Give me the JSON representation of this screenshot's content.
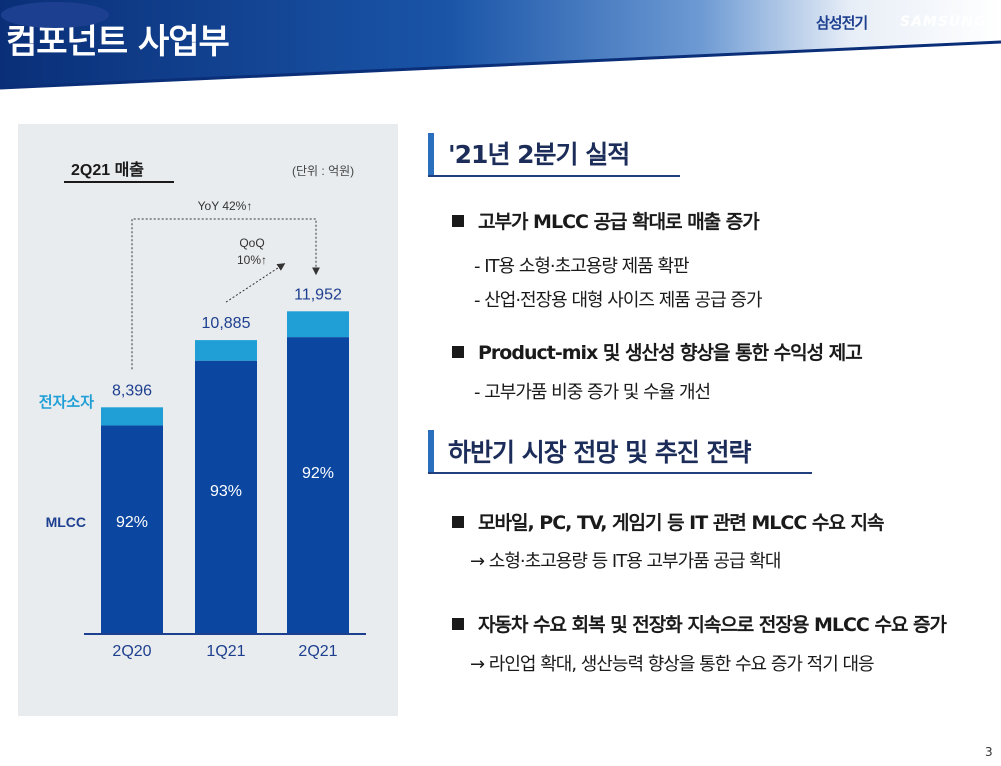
{
  "header": {
    "title": "컴포넌트 사업부",
    "brand_kr": "삼성전기",
    "brand_logo": "SAMSUNG"
  },
  "chart_data": {
    "type": "bar",
    "stacked": true,
    "title": "2Q21 매출",
    "unit_note": "(단위 : 억원)",
    "categories": [
      "2Q20",
      "1Q21",
      "2Q21"
    ],
    "totals": [
      8396,
      10885,
      11952
    ],
    "total_labels": [
      "8,396",
      "10,885",
      "11,952"
    ],
    "series": [
      {
        "name": "MLCC",
        "share_labels": [
          "92%",
          "93%",
          "92%"
        ],
        "shares": [
          92,
          93,
          92
        ]
      },
      {
        "name": "전자소자",
        "shares": [
          8,
          7,
          8
        ]
      }
    ],
    "ylim": [
      0,
      13000
    ],
    "annotations": {
      "yoy": "YoY 42%↑",
      "qoq_line1": "QoQ",
      "qoq_line2": "10%↑"
    },
    "colors": {
      "mlcc": "#0b47a1",
      "device": "#1f9fd6",
      "panel": "#e9ecef"
    }
  },
  "sections": [
    {
      "title": "'21년 2분기 실적",
      "bullets": [
        {
          "text": "고부가 MLCC 공급 확대로 매출 증가",
          "subs": [
            "- IT용 소형·초고용량 제품 확판",
            "- 산업·전장용 대형 사이즈 제품 공급 증가"
          ]
        },
        {
          "text": "Product-mix 및 생산성 향상을 통한 수익성 제고",
          "subs": [
            "- 고부가품 비중 증가 및 수율 개선"
          ]
        }
      ]
    },
    {
      "title": "하반기 시장 전망 및 추진 전략",
      "bullets": [
        {
          "text": "모바일, PC, TV, 게임기 등 IT 관련 MLCC 수요 지속",
          "subs": [
            "→ 소형·초고용량 등 IT용 고부가품 공급 확대"
          ]
        },
        {
          "text": "자동차 수요 회복 및 전장화 지속으로 전장용 MLCC 수요 증가",
          "subs": [
            "→ 라인업 확대, 생산능력 향상을 통한 수요 증가 적기 대응"
          ]
        }
      ]
    }
  ],
  "page_number": "3"
}
